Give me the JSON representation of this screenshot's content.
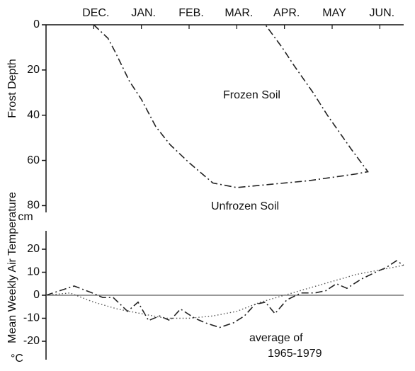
{
  "chart_data": [
    {
      "type": "line",
      "ylabel": "Frost Depth",
      "yunit": "cm",
      "xlim": [
        -1,
        6.5
      ],
      "xticks": [
        {
          "value": 0,
          "label": "DEC."
        },
        {
          "value": 1,
          "label": "JAN."
        },
        {
          "value": 2,
          "label": "FEB."
        },
        {
          "value": 3,
          "label": "MAR."
        },
        {
          "value": 4,
          "label": "APR."
        },
        {
          "value": 5,
          "label": "MAY"
        },
        {
          "value": 6,
          "label": "JUN."
        }
      ],
      "ylim": [
        0,
        83
      ],
      "yticks": [
        0,
        20,
        40,
        60,
        80
      ],
      "inverted": true,
      "annotations": [
        "Frozen Soil",
        "Unfrozen Soil"
      ],
      "series": [
        {
          "color": "#222222",
          "style": "dash-dot",
          "x": [
            0,
            0.3,
            0.45,
            0.75,
            1.0,
            1.3,
            1.6,
            2.0,
            2.5,
            3.0,
            3.5,
            4.5,
            5.5,
            5.75,
            5.4,
            4.9,
            4.6,
            4.2,
            3.95,
            3.6
          ],
          "values": [
            0,
            6,
            12,
            25,
            33,
            45,
            53,
            61,
            70,
            72,
            71,
            69,
            66,
            65,
            55,
            40,
            30,
            18,
            10,
            0
          ]
        }
      ]
    },
    {
      "type": "line",
      "ylabel": "Mean Weekly Air Temperature",
      "yunit": "°C",
      "xlim": [
        -1,
        6.5
      ],
      "ylim": [
        -28,
        28
      ],
      "yticks": [
        20,
        10,
        0,
        -10,
        -20
      ],
      "zero_line": true,
      "annotations": [
        "average of",
        "1965-1979"
      ],
      "series": [
        {
          "color": "#222222",
          "style": "dash-dot",
          "x": [
            -1.0,
            -0.41,
            -0.03,
            0.19,
            0.41,
            0.71,
            0.93,
            1.15,
            1.38,
            1.6,
            1.82,
            2.12,
            2.34,
            2.64,
            2.93,
            3.16,
            3.38,
            3.6,
            3.8,
            4.05,
            4.35,
            4.64,
            4.87,
            5.09,
            5.31,
            5.61,
            5.91,
            6.13,
            6.35,
            6.5
          ],
          "values": [
            0,
            4,
            1,
            -1,
            -1,
            -7,
            -3,
            -11,
            -9,
            -11,
            -6,
            -10,
            -12,
            -14,
            -12,
            -9,
            -4,
            -3,
            -8,
            -2,
            1,
            1,
            2,
            5,
            3,
            7,
            10,
            12,
            15,
            13
          ]
        },
        {
          "color": "#555555",
          "style": "dotted",
          "x": [
            -1,
            -0.5,
            0,
            0.5,
            1,
            1.5,
            2,
            2.5,
            3,
            3.5,
            4,
            4.5,
            5,
            5.5,
            6,
            6.5
          ],
          "values": [
            0,
            1,
            -3,
            -6,
            -8,
            -10,
            -10,
            -9,
            -7,
            -3,
            0,
            3,
            6,
            9,
            11,
            13
          ]
        }
      ]
    }
  ]
}
